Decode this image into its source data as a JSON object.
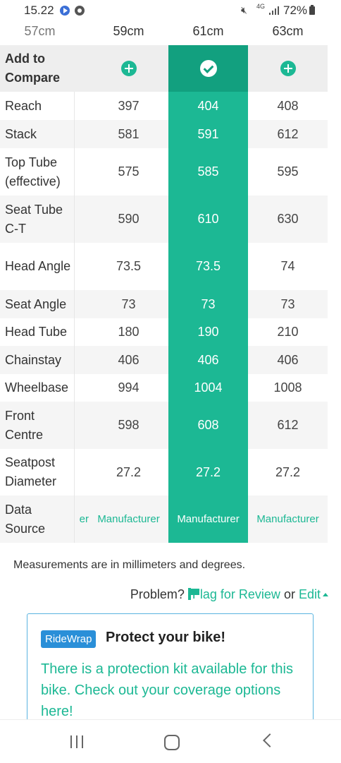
{
  "status_bar": {
    "time": "15.22",
    "network": "4G",
    "battery": "72%"
  },
  "sizes": {
    "prev": "57cm",
    "cols": [
      "59cm",
      "61cm",
      "63cm"
    ]
  },
  "table": {
    "compare_label": "Add to Compare",
    "rows": [
      {
        "label": "Reach",
        "values": [
          "397",
          "404",
          "408"
        ]
      },
      {
        "label": "Stack",
        "values": [
          "581",
          "591",
          "612"
        ]
      },
      {
        "label": "Top Tube (effective)",
        "values": [
          "575",
          "585",
          "595"
        ]
      },
      {
        "label": "Seat Tube C-T",
        "values": [
          "590",
          "610",
          "630"
        ]
      },
      {
        "label": "Head Angle",
        "values": [
          "73.5",
          "73.5",
          "74"
        ]
      },
      {
        "label": "Seat Angle",
        "values": [
          "73",
          "73",
          "73"
        ]
      },
      {
        "label": "Head Tube",
        "values": [
          "180",
          "190",
          "210"
        ]
      },
      {
        "label": "Chainstay",
        "values": [
          "406",
          "406",
          "406"
        ]
      },
      {
        "label": "Wheelbase",
        "values": [
          "994",
          "1004",
          "1008"
        ]
      },
      {
        "label": "Front Centre",
        "values": [
          "598",
          "608",
          "612"
        ]
      },
      {
        "label": "Seatpost Diameter",
        "values": [
          "27.2",
          "27.2",
          "27.2"
        ]
      }
    ],
    "source": {
      "label": "Data Source",
      "clipped": "er",
      "values": [
        "Manufacturer",
        "Manufacturer",
        "Manufacturer"
      ]
    }
  },
  "note": "Measurements are in millimeters and degrees.",
  "problem": {
    "prefix": "Problem?",
    "flag": "Flag for Review",
    "or": "or",
    "edit": "Edit"
  },
  "promo": {
    "badge": "RideWrap",
    "title": "Protect your bike!",
    "text": "There is a protection kit available for this bike. Check out your coverage options here!"
  },
  "colors": {
    "accent": "#1cb894",
    "accent_dark": "#12a07f",
    "badge": "#2a8fd8"
  }
}
